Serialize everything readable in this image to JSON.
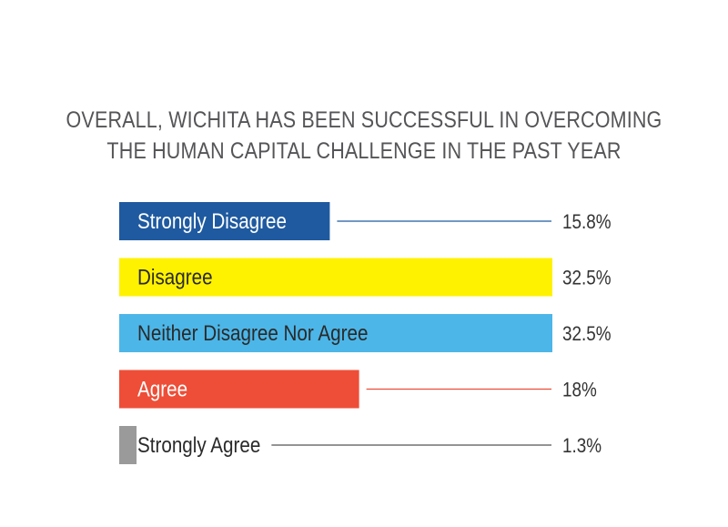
{
  "chart_data": {
    "type": "bar",
    "orientation": "horizontal",
    "title_lines": [
      "OVERALL, WICHITA HAS BEEN SUCCESSFUL IN OVERCOMING",
      "THE HUMAN CAPITAL CHALLENGE IN THE PAST YEAR"
    ],
    "categories": [
      "Strongly Disagree",
      "Disagree",
      "Neither Disagree Nor Agree",
      "Agree",
      "Strongly Agree"
    ],
    "values": [
      15.8,
      32.5,
      32.5,
      18,
      1.3
    ],
    "value_labels": [
      "15.8%",
      "32.5%",
      "32.5%",
      "18%",
      "1.3%"
    ],
    "colors": [
      "#1f5aa0",
      "#fff200",
      "#4cb6e8",
      "#ee4e37",
      "#9a9a9a"
    ],
    "label_colors": [
      "#ffffff",
      "#2a2a2a",
      "#2a2a2a",
      "#ffffff",
      "#2a2a2a"
    ],
    "xlim": [
      0,
      32.5
    ],
    "legend": "none",
    "grid": false
  }
}
